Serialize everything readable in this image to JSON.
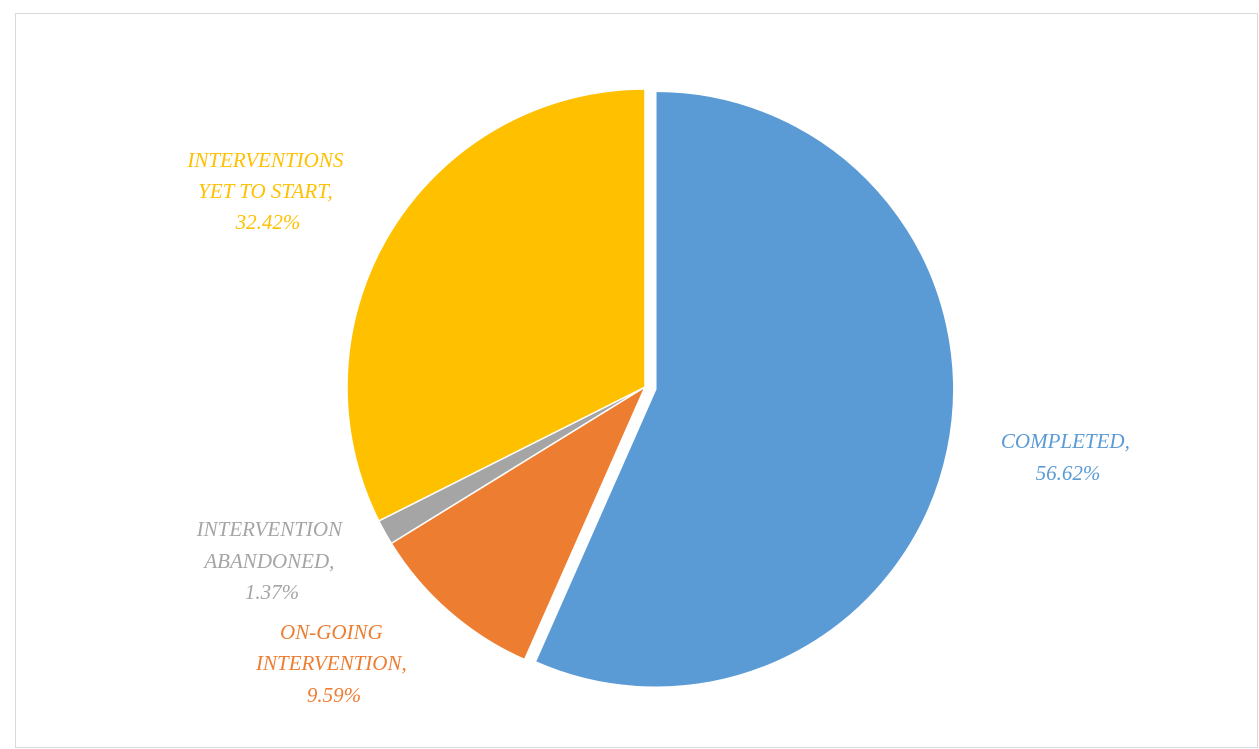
{
  "chart_data": {
    "type": "pie",
    "title": "",
    "slices": [
      {
        "label": "COMPLETED",
        "value": 56.62,
        "value_text": "56.62%",
        "color": "#5B9BD5",
        "exploded": true
      },
      {
        "label": "ON-GOING INTERVENTION",
        "value": 9.59,
        "value_text": "9.59%",
        "color": "#ED7D31",
        "exploded": false
      },
      {
        "label": "INTERVENTION ABANDONED",
        "value": 1.37,
        "value_text": "1.37%",
        "color": "#A5A5A5",
        "exploded": false
      },
      {
        "label": "INTERVENTIONS YET TO START",
        "value": 32.42,
        "value_text": "32.42%",
        "color": "#FFC000",
        "exploded": false
      }
    ],
    "legend": "none",
    "label_texts": {
      "completed_1": "COMPLETED,",
      "completed_2": "56.62%",
      "ongoing_1": "ON-GOING",
      "ongoing_2": "INTERVENTION,",
      "ongoing_3": "9.59%",
      "abandoned_1": "INTERVENTION",
      "abandoned_2": "ABANDONED,",
      "abandoned_3": "1.37%",
      "yet_1": "INTERVENTIONS",
      "yet_2": "YET TO START,",
      "yet_3": "32.42%"
    }
  }
}
